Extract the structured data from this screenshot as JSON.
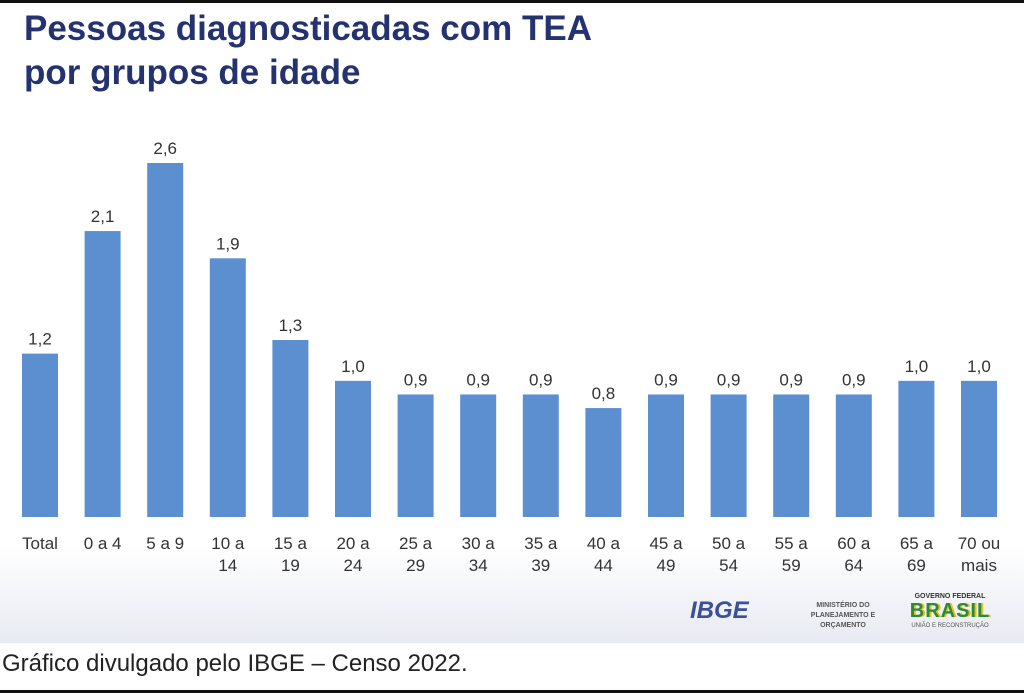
{
  "title_line1": "Pessoas diagnosticadas com TEA",
  "title_line2": "por grupos de idade",
  "caption": "Gráfico divulgado pelo IBGE – Censo 2022.",
  "logos": {
    "ibge": "IBGE",
    "ministerio": "MINISTÉRIO DO PLANEJAMENTO E ORÇAMENTO",
    "governo": "GOVERNO FEDERAL",
    "brasil": "BRASIL",
    "slogan": "UNIÃO E RECONSTRUÇÃO"
  },
  "colors": {
    "bar": "#5b8fd0",
    "title": "#24336f"
  },
  "chart_data": {
    "type": "bar",
    "title": "Pessoas diagnosticadas com TEA por grupos de idade",
    "categories": [
      [
        "Total"
      ],
      [
        "0 a 4"
      ],
      [
        "5 a 9"
      ],
      [
        "10 a",
        "14"
      ],
      [
        "15 a",
        "19"
      ],
      [
        "20 a",
        "24"
      ],
      [
        "25 a",
        "29"
      ],
      [
        "30 a",
        "34"
      ],
      [
        "35 a",
        "39"
      ],
      [
        "40 a",
        "44"
      ],
      [
        "45 a",
        "49"
      ],
      [
        "50 a",
        "54"
      ],
      [
        "55 a",
        "59"
      ],
      [
        "60 a",
        "64"
      ],
      [
        "65 a",
        "69"
      ],
      [
        "70 ou",
        "mais"
      ]
    ],
    "values": [
      1.2,
      2.1,
      2.6,
      1.9,
      1.3,
      1.0,
      0.9,
      0.9,
      0.9,
      0.8,
      0.9,
      0.9,
      0.9,
      0.9,
      1.0,
      1.0
    ],
    "value_labels": [
      "1,2",
      "2,1",
      "2,6",
      "1,9",
      "1,3",
      "1,0",
      "0,9",
      "0,9",
      "0,9",
      "0,8",
      "0,9",
      "0,9",
      "0,9",
      "0,9",
      "1,0",
      "1,0"
    ],
    "xlabel": "",
    "ylabel": "",
    "ylim": [
      0,
      2.6
    ],
    "grid": false
  }
}
